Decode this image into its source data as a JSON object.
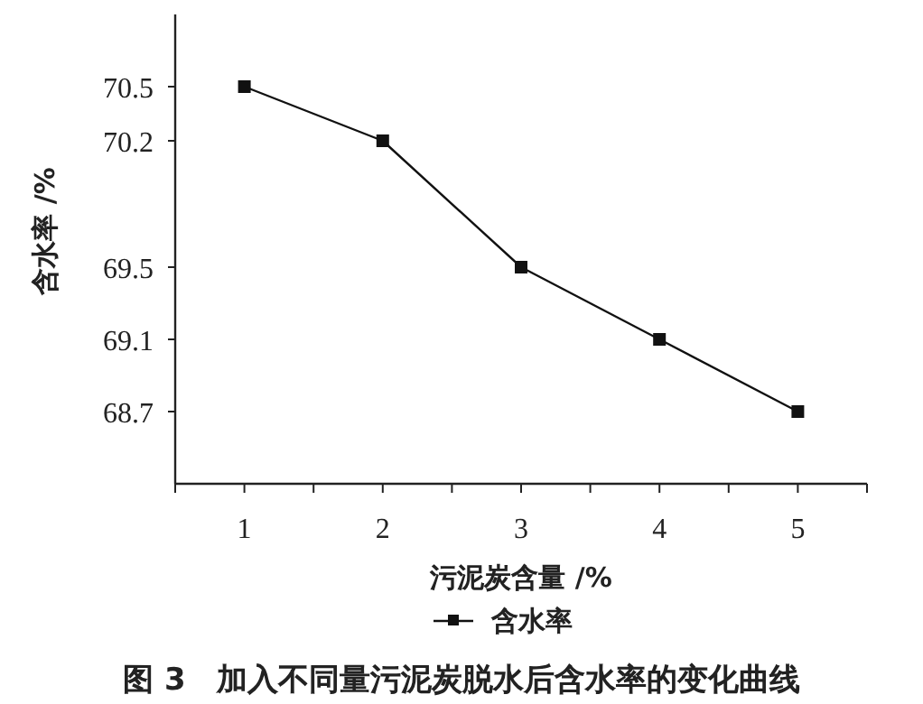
{
  "chart_data": {
    "type": "line",
    "title": "图 3　加入不同量污泥炭脱水后含水率的变化曲线",
    "xlabel": "污泥炭含量 /%",
    "ylabel": "含水率 /%",
    "x": [
      1,
      2,
      3,
      4,
      5
    ],
    "series": [
      {
        "name": "含水率",
        "color": "#111111",
        "values": [
          70.5,
          70.2,
          69.5,
          69.1,
          68.7
        ]
      }
    ],
    "xlim": [
      0.5,
      5.5
    ],
    "xticks": [
      {
        "value": 0.5,
        "label": null
      },
      1,
      {
        "value": 1.5,
        "label": null
      },
      2,
      {
        "value": 2.5,
        "label": null
      },
      3,
      {
        "value": 3.5,
        "label": null
      },
      4,
      {
        "value": 4.5,
        "label": null
      },
      5,
      {
        "value": 5.5,
        "label": null
      }
    ],
    "ylim": [
      68.3,
      70.9
    ],
    "yticks": [
      68.7,
      69.1,
      69.5,
      70.2,
      70.5
    ],
    "marker": "square",
    "line_style": "solid",
    "legend": "bottom",
    "grid": false
  }
}
